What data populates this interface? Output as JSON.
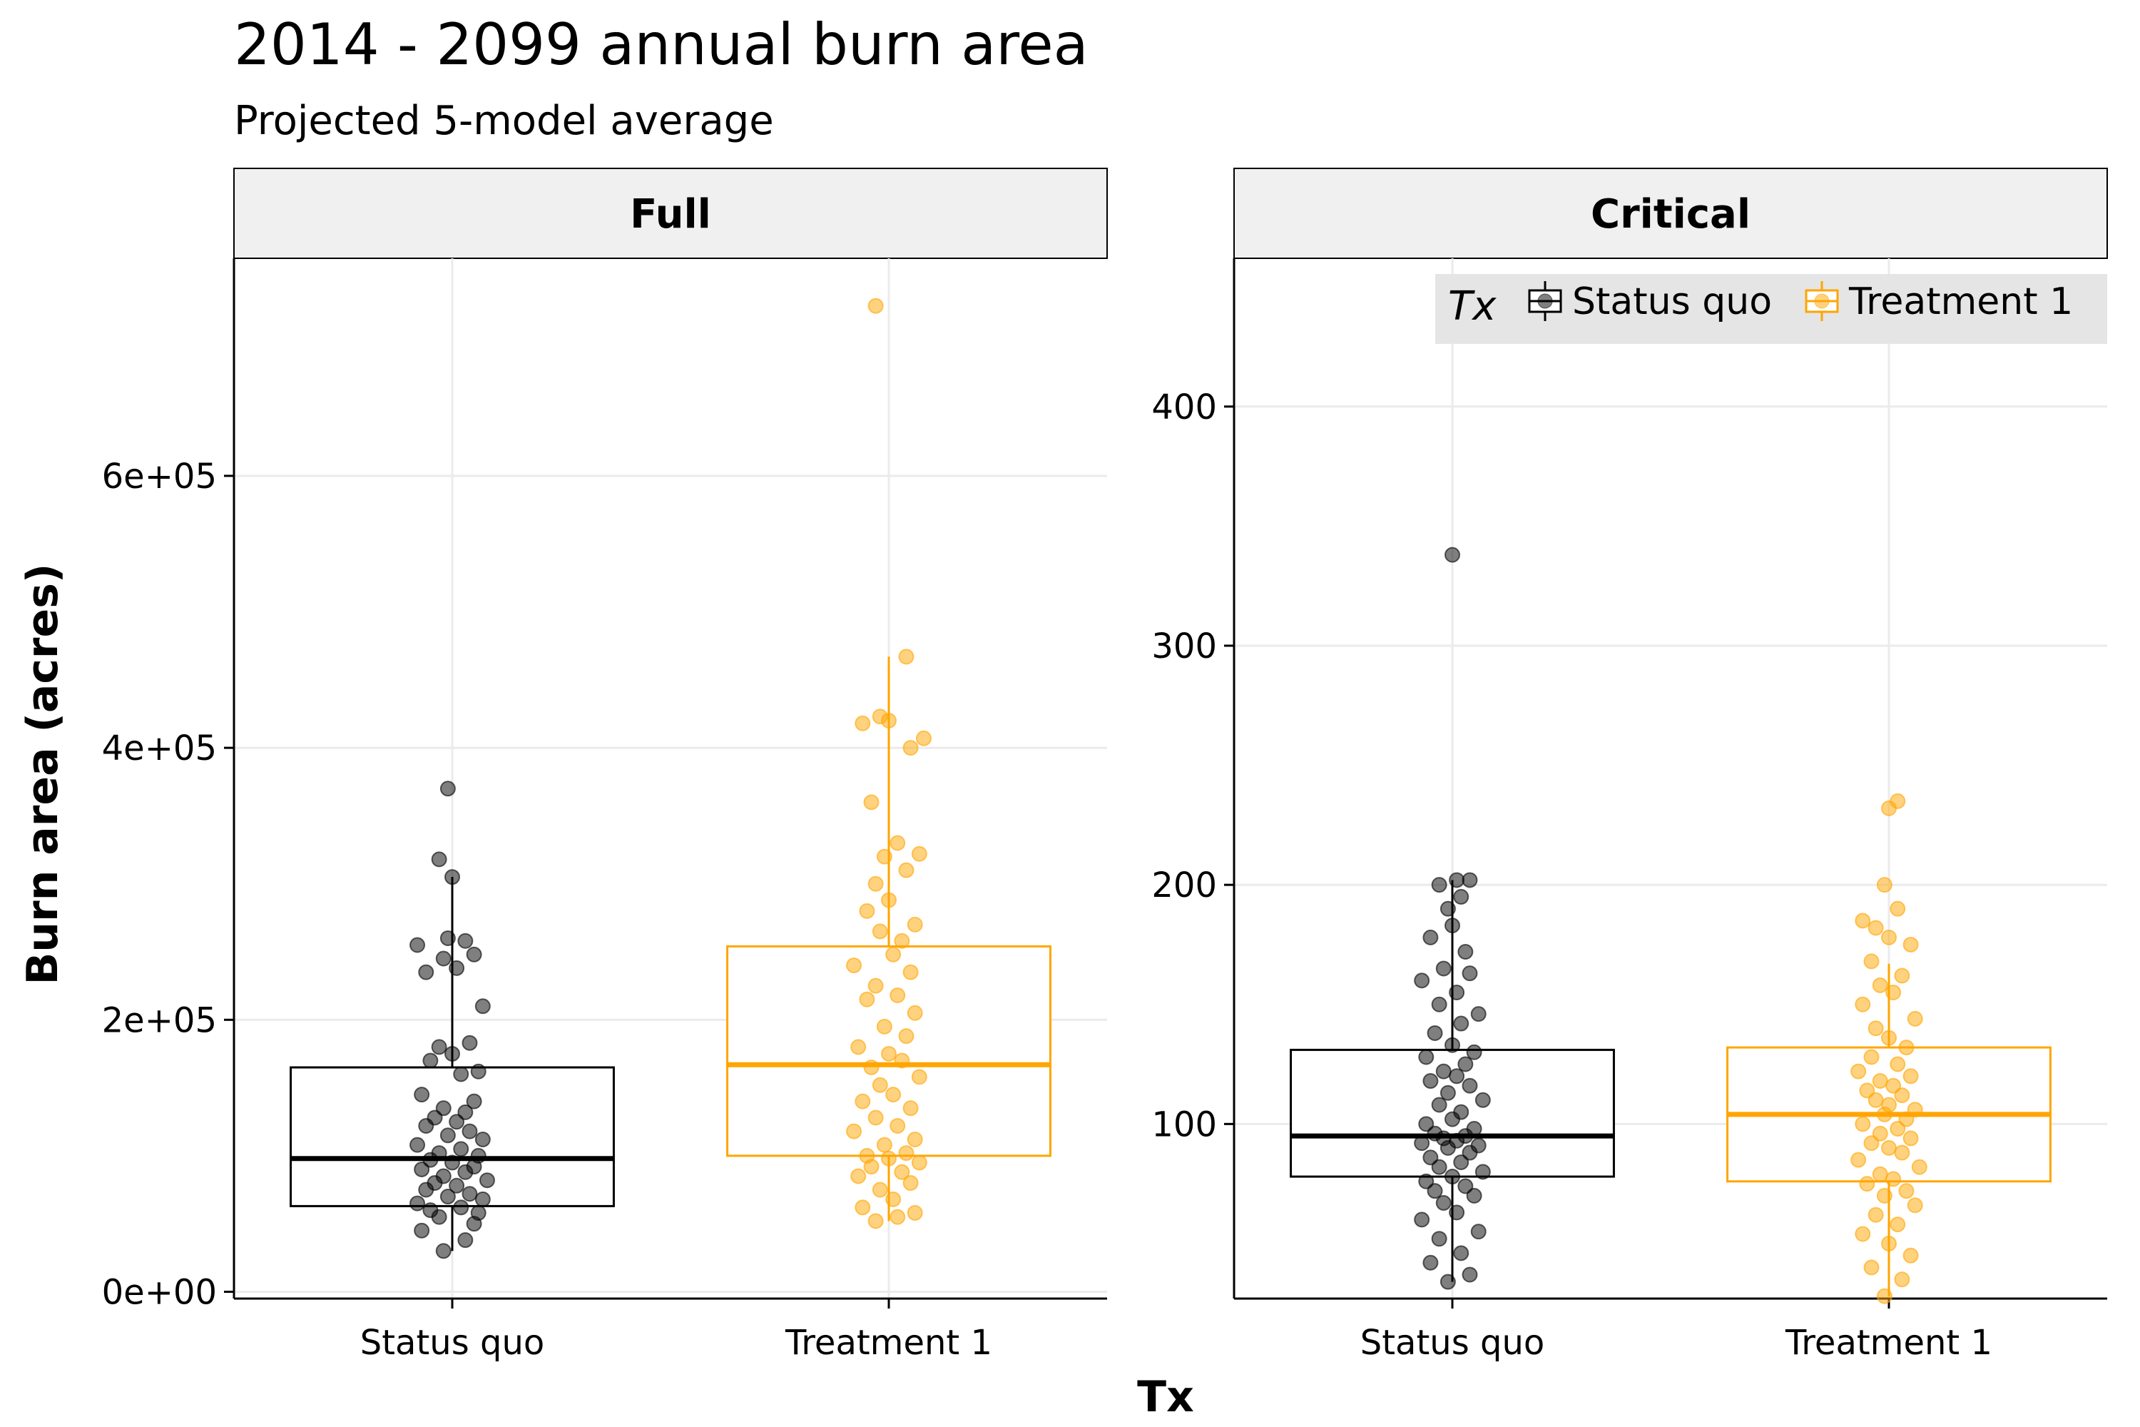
{
  "title": "2014 - 2099 annual burn area",
  "subtitle": "Projected 5-model average",
  "xlabel": "Tx",
  "ylabel": "Burn area (acres)",
  "colors": {
    "Status quo": "#000000",
    "Treatment 1": "#FFA500"
  },
  "legend": {
    "title": "Tx",
    "placement": "top-right inside Critical panel",
    "items": [
      "Status quo",
      "Treatment 1"
    ]
  },
  "chart_data": [
    {
      "type": "box",
      "facet": "Full",
      "categories": [
        "Status quo",
        "Treatment 1"
      ],
      "ylim": [
        -5000,
        760000
      ],
      "yticks": [
        0,
        200000,
        400000,
        600000
      ],
      "ytick_labels": [
        "0e+00",
        "2e+05",
        "4e+05",
        "6e+05"
      ],
      "grid": true,
      "boxes": [
        {
          "name": "Status quo",
          "q1": 63000,
          "median": 98000,
          "q3": 165000,
          "whisker_low": 30000,
          "whisker_high": 305000,
          "points": [
            [
              -0.02,
              30000
            ],
            [
              0.03,
              38000
            ],
            [
              -0.07,
              45000
            ],
            [
              0.05,
              50000
            ],
            [
              -0.03,
              55000
            ],
            [
              0.06,
              58000
            ],
            [
              -0.05,
              60000
            ],
            [
              0.02,
              62000
            ],
            [
              -0.08,
              65000
            ],
            [
              0.07,
              68000
            ],
            [
              -0.01,
              70000
            ],
            [
              0.04,
              72000
            ],
            [
              -0.06,
              75000
            ],
            [
              0.01,
              78000
            ],
            [
              -0.04,
              80000
            ],
            [
              0.08,
              82000
            ],
            [
              -0.02,
              85000
            ],
            [
              0.03,
              88000
            ],
            [
              -0.07,
              90000
            ],
            [
              0.05,
              92000
            ],
            [
              0.0,
              95000
            ],
            [
              -0.05,
              97000
            ],
            [
              0.06,
              100000
            ],
            [
              -0.03,
              102000
            ],
            [
              0.02,
              105000
            ],
            [
              -0.08,
              108000
            ],
            [
              0.07,
              112000
            ],
            [
              -0.01,
              115000
            ],
            [
              0.04,
              118000
            ],
            [
              -0.06,
              122000
            ],
            [
              0.01,
              125000
            ],
            [
              -0.04,
              128000
            ],
            [
              0.03,
              132000
            ],
            [
              -0.02,
              135000
            ],
            [
              0.05,
              140000
            ],
            [
              -0.07,
              145000
            ],
            [
              0.02,
              160000
            ],
            [
              0.06,
              162000
            ],
            [
              -0.05,
              170000
            ],
            [
              0.0,
              175000
            ],
            [
              -0.03,
              180000
            ],
            [
              0.04,
              183000
            ],
            [
              0.07,
              210000
            ],
            [
              -0.06,
              235000
            ],
            [
              0.01,
              238000
            ],
            [
              -0.02,
              245000
            ],
            [
              0.05,
              248000
            ],
            [
              -0.08,
              255000
            ],
            [
              0.03,
              258000
            ],
            [
              -0.01,
              260000
            ],
            [
              0.0,
              305000
            ],
            [
              -0.03,
              318000
            ],
            [
              -0.01,
              370000
            ]
          ]
        },
        {
          "name": "Treatment 1",
          "q1": 100000,
          "median": 167000,
          "q3": 254000,
          "whisker_low": 52000,
          "whisker_high": 467000,
          "points": [
            [
              -0.03,
              52000
            ],
            [
              0.02,
              55000
            ],
            [
              0.06,
              58000
            ],
            [
              -0.06,
              62000
            ],
            [
              0.01,
              68000
            ],
            [
              -0.02,
              75000
            ],
            [
              0.05,
              80000
            ],
            [
              -0.07,
              85000
            ],
            [
              0.03,
              88000
            ],
            [
              -0.04,
              92000
            ],
            [
              0.07,
              95000
            ],
            [
              0.0,
              98000
            ],
            [
              -0.05,
              100000
            ],
            [
              0.04,
              102000
            ],
            [
              -0.01,
              108000
            ],
            [
              0.06,
              112000
            ],
            [
              -0.08,
              118000
            ],
            [
              0.02,
              122000
            ],
            [
              -0.03,
              128000
            ],
            [
              0.05,
              135000
            ],
            [
              -0.06,
              140000
            ],
            [
              0.01,
              145000
            ],
            [
              -0.02,
              152000
            ],
            [
              0.07,
              158000
            ],
            [
              -0.04,
              165000
            ],
            [
              0.03,
              170000
            ],
            [
              0.0,
              175000
            ],
            [
              -0.07,
              180000
            ],
            [
              0.04,
              188000
            ],
            [
              -0.01,
              195000
            ],
            [
              0.06,
              205000
            ],
            [
              -0.05,
              215000
            ],
            [
              0.02,
              218000
            ],
            [
              -0.03,
              225000
            ],
            [
              0.05,
              235000
            ],
            [
              -0.08,
              240000
            ],
            [
              0.01,
              248000
            ],
            [
              0.03,
              258000
            ],
            [
              -0.02,
              265000
            ],
            [
              0.06,
              270000
            ],
            [
              -0.05,
              280000
            ],
            [
              0.0,
              288000
            ],
            [
              -0.03,
              300000
            ],
            [
              0.04,
              310000
            ],
            [
              -0.01,
              320000
            ],
            [
              0.07,
              322000
            ],
            [
              0.02,
              330000
            ],
            [
              -0.04,
              360000
            ],
            [
              0.05,
              400000
            ],
            [
              -0.06,
              418000
            ],
            [
              0.0,
              420000
            ],
            [
              -0.02,
              423000
            ],
            [
              0.08,
              407000
            ],
            [
              0.04,
              467000
            ],
            [
              -0.03,
              725000
            ]
          ]
        }
      ]
    },
    {
      "type": "box",
      "facet": "Critical",
      "categories": [
        "Status quo",
        "Treatment 1"
      ],
      "ylim": [
        27,
        462
      ],
      "yticks": [
        100,
        200,
        300,
        400
      ],
      "ytick_labels": [
        "100",
        "200",
        "300",
        "400"
      ],
      "grid": true,
      "boxes": [
        {
          "name": "Status quo",
          "q1": 78,
          "median": 95,
          "q3": 131,
          "whisker_low": 34,
          "whisker_high": 202,
          "points": [
            [
              -0.01,
              34
            ],
            [
              0.04,
              37
            ],
            [
              -0.05,
              42
            ],
            [
              0.02,
              46
            ],
            [
              -0.03,
              52
            ],
            [
              0.06,
              55
            ],
            [
              -0.07,
              60
            ],
            [
              0.01,
              63
            ],
            [
              -0.02,
              67
            ],
            [
              0.05,
              70
            ],
            [
              -0.04,
              72
            ],
            [
              0.03,
              74
            ],
            [
              -0.06,
              76
            ],
            [
              0.0,
              78
            ],
            [
              0.07,
              80
            ],
            [
              -0.03,
              82
            ],
            [
              0.02,
              84
            ],
            [
              -0.05,
              86
            ],
            [
              0.04,
              88
            ],
            [
              -0.01,
              90
            ],
            [
              0.06,
              91
            ],
            [
              -0.07,
              92
            ],
            [
              0.01,
              93
            ],
            [
              -0.02,
              94
            ],
            [
              0.03,
              95
            ],
            [
              -0.04,
              96
            ],
            [
              0.05,
              98
            ],
            [
              -0.06,
              100
            ],
            [
              0.0,
              102
            ],
            [
              0.02,
              105
            ],
            [
              -0.03,
              108
            ],
            [
              0.07,
              110
            ],
            [
              -0.01,
              113
            ],
            [
              0.04,
              116
            ],
            [
              -0.05,
              118
            ],
            [
              0.01,
              120
            ],
            [
              -0.02,
              122
            ],
            [
              0.03,
              125
            ],
            [
              -0.06,
              128
            ],
            [
              0.05,
              130
            ],
            [
              0.0,
              133
            ],
            [
              -0.04,
              138
            ],
            [
              0.02,
              142
            ],
            [
              0.06,
              146
            ],
            [
              -0.03,
              150
            ],
            [
              0.01,
              155
            ],
            [
              -0.07,
              160
            ],
            [
              0.04,
              163
            ],
            [
              -0.02,
              165
            ],
            [
              0.03,
              172
            ],
            [
              -0.05,
              178
            ],
            [
              0.0,
              183
            ],
            [
              -0.01,
              190
            ],
            [
              0.02,
              195
            ],
            [
              -0.03,
              200
            ],
            [
              0.01,
              202
            ],
            [
              0.04,
              202
            ],
            [
              0.0,
              338
            ]
          ]
        },
        {
          "name": "Treatment 1",
          "q1": 76,
          "median": 104,
          "q3": 132,
          "whisker_low": 28,
          "whisker_high": 167,
          "points": [
            [
              -0.01,
              28
            ],
            [
              0.03,
              35
            ],
            [
              -0.04,
              40
            ],
            [
              0.05,
              45
            ],
            [
              0.0,
              50
            ],
            [
              -0.06,
              54
            ],
            [
              0.02,
              58
            ],
            [
              -0.03,
              62
            ],
            [
              0.06,
              66
            ],
            [
              -0.01,
              70
            ],
            [
              0.04,
              72
            ],
            [
              -0.05,
              75
            ],
            [
              0.01,
              77
            ],
            [
              -0.02,
              79
            ],
            [
              0.07,
              82
            ],
            [
              -0.07,
              85
            ],
            [
              0.03,
              88
            ],
            [
              0.0,
              90
            ],
            [
              -0.04,
              92
            ],
            [
              0.05,
              94
            ],
            [
              -0.02,
              96
            ],
            [
              0.02,
              98
            ],
            [
              -0.06,
              100
            ],
            [
              0.04,
              102
            ],
            [
              -0.01,
              104
            ],
            [
              0.06,
              106
            ],
            [
              0.0,
              108
            ],
            [
              -0.03,
              110
            ],
            [
              0.03,
              112
            ],
            [
              -0.05,
              114
            ],
            [
              0.01,
              116
            ],
            [
              -0.02,
              118
            ],
            [
              0.05,
              120
            ],
            [
              -0.07,
              122
            ],
            [
              0.02,
              125
            ],
            [
              -0.04,
              128
            ],
            [
              0.04,
              132
            ],
            [
              0.0,
              136
            ],
            [
              -0.03,
              140
            ],
            [
              0.06,
              144
            ],
            [
              -0.06,
              150
            ],
            [
              0.01,
              155
            ],
            [
              -0.02,
              158
            ],
            [
              0.03,
              162
            ],
            [
              -0.04,
              168
            ],
            [
              0.05,
              175
            ],
            [
              0.0,
              178
            ],
            [
              -0.03,
              182
            ],
            [
              -0.06,
              185
            ],
            [
              0.02,
              190
            ],
            [
              -0.01,
              200
            ],
            [
              0.0,
              232
            ],
            [
              0.02,
              235
            ]
          ]
        }
      ]
    }
  ]
}
